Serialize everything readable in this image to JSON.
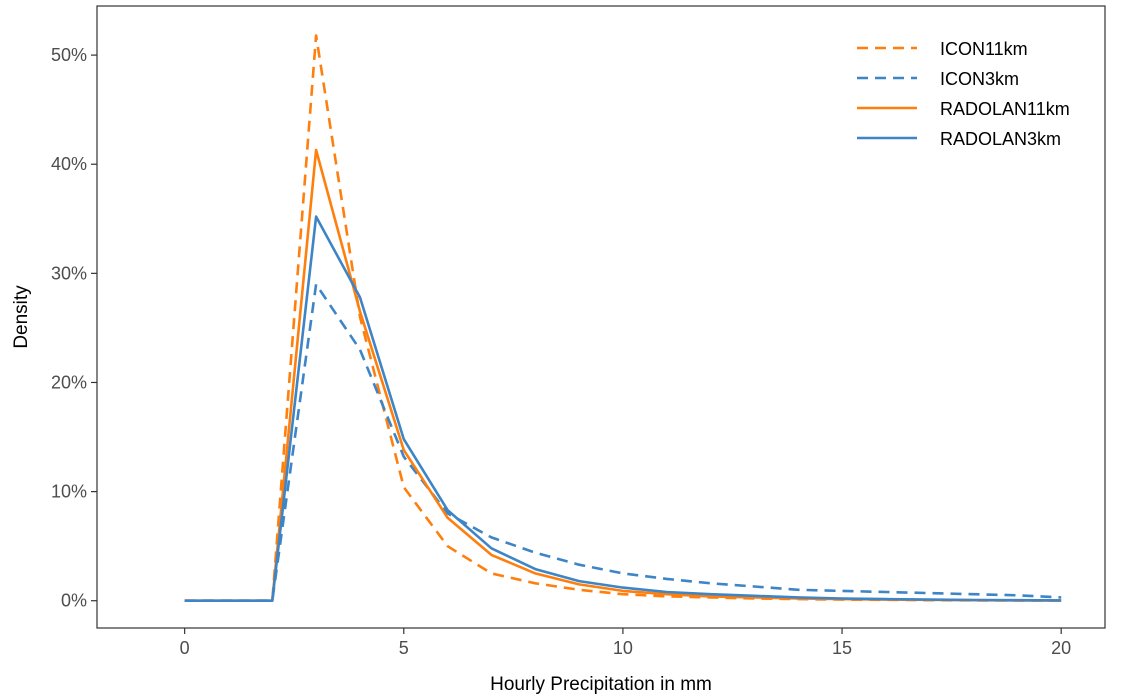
{
  "chart_data": {
    "type": "line",
    "xlabel": "Hourly Precipitation in mm",
    "ylabel": "Density",
    "xlim": [
      -2,
      21
    ],
    "ylim": [
      -2.5,
      54.5
    ],
    "xticks": [
      0,
      5,
      10,
      15,
      20
    ],
    "xtick_labels": [
      "0",
      "5",
      "10",
      "15",
      "20"
    ],
    "yticks": [
      0,
      10,
      20,
      30,
      40,
      50
    ],
    "ytick_labels": [
      "0%",
      "10%",
      "20%",
      "30%",
      "40%",
      "50%"
    ],
    "grid": false,
    "legend_position": "top-right",
    "x": [
      0,
      1,
      2,
      3,
      4,
      5,
      6,
      7,
      8,
      9,
      10,
      11,
      12,
      13,
      14,
      15,
      16,
      17,
      18,
      19,
      20
    ],
    "series": [
      {
        "name": "ICON11km",
        "color": "#ff7f0e",
        "dash": "dashed",
        "values": [
          0,
          0,
          0,
          51.8,
          26.0,
          10.4,
          5.0,
          2.5,
          1.6,
          1.0,
          0.6,
          0.4,
          0.3,
          0.2,
          0.15,
          0.1,
          0.08,
          0.05,
          0.03,
          0.02,
          0.01
        ]
      },
      {
        "name": "ICON3km",
        "color": "#3d85c6",
        "dash": "dashed",
        "values": [
          0,
          0,
          0,
          29.0,
          23.0,
          13.2,
          8.0,
          5.8,
          4.4,
          3.3,
          2.5,
          2.0,
          1.6,
          1.3,
          1.0,
          0.9,
          0.8,
          0.7,
          0.6,
          0.5,
          0.3
        ]
      },
      {
        "name": "RADOLAN11km",
        "color": "#ff7f0e",
        "dash": "solid",
        "values": [
          0,
          0,
          0,
          41.3,
          26.5,
          13.8,
          7.6,
          4.2,
          2.5,
          1.5,
          0.9,
          0.6,
          0.4,
          0.3,
          0.2,
          0.15,
          0.1,
          0.08,
          0.05,
          0.03,
          0.02
        ]
      },
      {
        "name": "RADOLAN3km",
        "color": "#3d85c6",
        "dash": "solid",
        "values": [
          0,
          0,
          0,
          35.2,
          27.8,
          14.8,
          8.3,
          4.8,
          2.9,
          1.8,
          1.2,
          0.8,
          0.6,
          0.45,
          0.3,
          0.2,
          0.15,
          0.1,
          0.07,
          0.05,
          0.03
        ]
      }
    ]
  }
}
